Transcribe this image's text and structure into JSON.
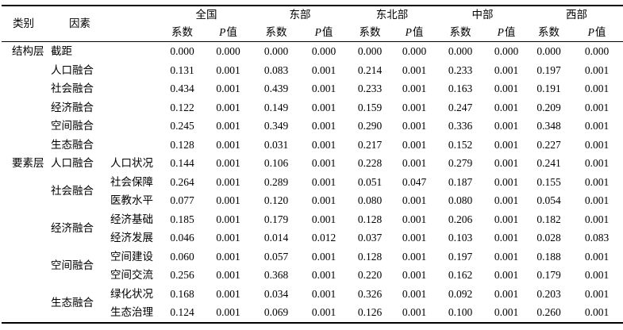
{
  "table": {
    "headers": {
      "category": "类别",
      "factor": "因素",
      "regions": [
        "全国",
        "东部",
        "东北部",
        "中部",
        "西部"
      ],
      "coef": "系数",
      "p_letter": "P",
      "p_word": "值"
    },
    "sections": [
      {
        "category": "结构层",
        "groups": [
          {
            "name": "截距",
            "rows": [
              {
                "values": [
                  "0.000",
                  "0.000",
                  "0.000",
                  "0.000",
                  "0.000",
                  "0.000",
                  "0.000",
                  "0.000",
                  "0.000",
                  "0.000"
                ]
              }
            ]
          },
          {
            "name": "人口融合",
            "rows": [
              {
                "values": [
                  "0.131",
                  "0.001",
                  "0.083",
                  "0.001",
                  "0.214",
                  "0.001",
                  "0.233",
                  "0.001",
                  "0.197",
                  "0.001"
                ]
              }
            ]
          },
          {
            "name": "社会融合",
            "rows": [
              {
                "values": [
                  "0.434",
                  "0.001",
                  "0.439",
                  "0.001",
                  "0.233",
                  "0.001",
                  "0.163",
                  "0.001",
                  "0.191",
                  "0.001"
                ]
              }
            ]
          },
          {
            "name": "经济融合",
            "rows": [
              {
                "values": [
                  "0.122",
                  "0.001",
                  "0.149",
                  "0.001",
                  "0.159",
                  "0.001",
                  "0.247",
                  "0.001",
                  "0.209",
                  "0.001"
                ]
              }
            ]
          },
          {
            "name": "空间融合",
            "rows": [
              {
                "values": [
                  "0.245",
                  "0.001",
                  "0.349",
                  "0.001",
                  "0.290",
                  "0.001",
                  "0.336",
                  "0.001",
                  "0.348",
                  "0.001"
                ]
              }
            ]
          },
          {
            "name": "生态融合",
            "rows": [
              {
                "values": [
                  "0.128",
                  "0.001",
                  "0.031",
                  "0.001",
                  "0.217",
                  "0.001",
                  "0.152",
                  "0.001",
                  "0.227",
                  "0.001"
                ]
              }
            ]
          }
        ]
      },
      {
        "category": "要素层",
        "groups": [
          {
            "name": "人口融合",
            "rows": [
              {
                "sub": "人口状况",
                "values": [
                  "0.144",
                  "0.001",
                  "0.106",
                  "0.001",
                  "0.228",
                  "0.001",
                  "0.279",
                  "0.001",
                  "0.241",
                  "0.001"
                ]
              }
            ]
          },
          {
            "name": "社会融合",
            "rows": [
              {
                "sub": "社会保障",
                "values": [
                  "0.264",
                  "0.001",
                  "0.289",
                  "0.001",
                  "0.051",
                  "0.047",
                  "0.187",
                  "0.001",
                  "0.155",
                  "0.001"
                ]
              },
              {
                "sub": "医教水平",
                "values": [
                  "0.077",
                  "0.001",
                  "0.120",
                  "0.001",
                  "0.080",
                  "0.001",
                  "0.080",
                  "0.001",
                  "0.054",
                  "0.001"
                ]
              }
            ]
          },
          {
            "name": "经济融合",
            "rows": [
              {
                "sub": "经济基础",
                "values": [
                  "0.185",
                  "0.001",
                  "0.179",
                  "0.001",
                  "0.128",
                  "0.001",
                  "0.206",
                  "0.001",
                  "0.182",
                  "0.001"
                ]
              },
              {
                "sub": "经济发展",
                "values": [
                  "0.046",
                  "0.001",
                  "0.014",
                  "0.012",
                  "0.037",
                  "0.001",
                  "0.103",
                  "0.001",
                  "0.028",
                  "0.083"
                ]
              }
            ]
          },
          {
            "name": "空间融合",
            "rows": [
              {
                "sub": "空间建设",
                "values": [
                  "0.060",
                  "0.001",
                  "0.057",
                  "0.001",
                  "0.128",
                  "0.001",
                  "0.197",
                  "0.001",
                  "0.188",
                  "0.001"
                ]
              },
              {
                "sub": "空间交流",
                "values": [
                  "0.256",
                  "0.001",
                  "0.368",
                  "0.001",
                  "0.220",
                  "0.001",
                  "0.162",
                  "0.001",
                  "0.179",
                  "0.001"
                ]
              }
            ]
          },
          {
            "name": "生态融合",
            "rows": [
              {
                "sub": "绿化状况",
                "values": [
                  "0.168",
                  "0.001",
                  "0.034",
                  "0.001",
                  "0.326",
                  "0.001",
                  "0.092",
                  "0.001",
                  "0.203",
                  "0.001"
                ]
              },
              {
                "sub": "生态治理",
                "values": [
                  "0.124",
                  "0.001",
                  "0.069",
                  "0.001",
                  "0.126",
                  "0.001",
                  "0.100",
                  "0.001",
                  "0.260",
                  "0.001"
                ]
              }
            ]
          }
        ]
      }
    ]
  }
}
